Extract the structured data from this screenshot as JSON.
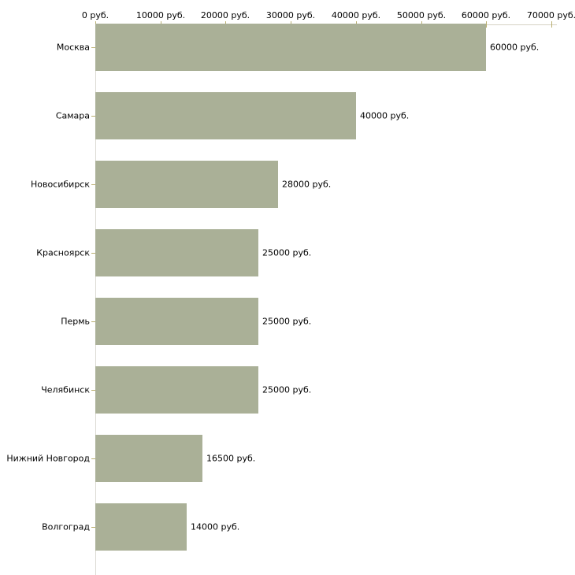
{
  "chart_data": {
    "type": "bar",
    "orientation": "horizontal",
    "title": "",
    "unit": "руб.",
    "categories": [
      "Москва",
      "Самара",
      "Новосибирск",
      "Красноярск",
      "Пермь",
      "Челябинск",
      "Нижний Новгород",
      "Волгоград"
    ],
    "values": [
      60000,
      40000,
      28000,
      25000,
      25000,
      25000,
      16500,
      14000
    ],
    "value_labels": [
      "60000 руб.",
      "40000 руб.",
      "28000 руб.",
      "25000 руб.",
      "25000 руб.",
      "25000 руб.",
      "16500 руб.",
      "14000 руб."
    ],
    "x_axis": {
      "position": "top",
      "xlim": [
        0,
        70000
      ],
      "tick_values": [
        0,
        10000,
        20000,
        30000,
        40000,
        50000,
        60000,
        70000
      ],
      "tick_labels": [
        "0 руб.",
        "10000 руб.",
        "20000 руб.",
        "30000 руб.",
        "40000 руб.",
        "50000 руб.",
        "60000 руб.",
        "70000 руб."
      ]
    },
    "grid": false,
    "legend": null,
    "colors": {
      "bar": "#aab097",
      "x_axis_line": "#d6d3c4",
      "y_axis_line": "#dbdad2",
      "tick_mark": "#b9ae6e",
      "text": "#000000",
      "background": "#ffffff"
    }
  }
}
